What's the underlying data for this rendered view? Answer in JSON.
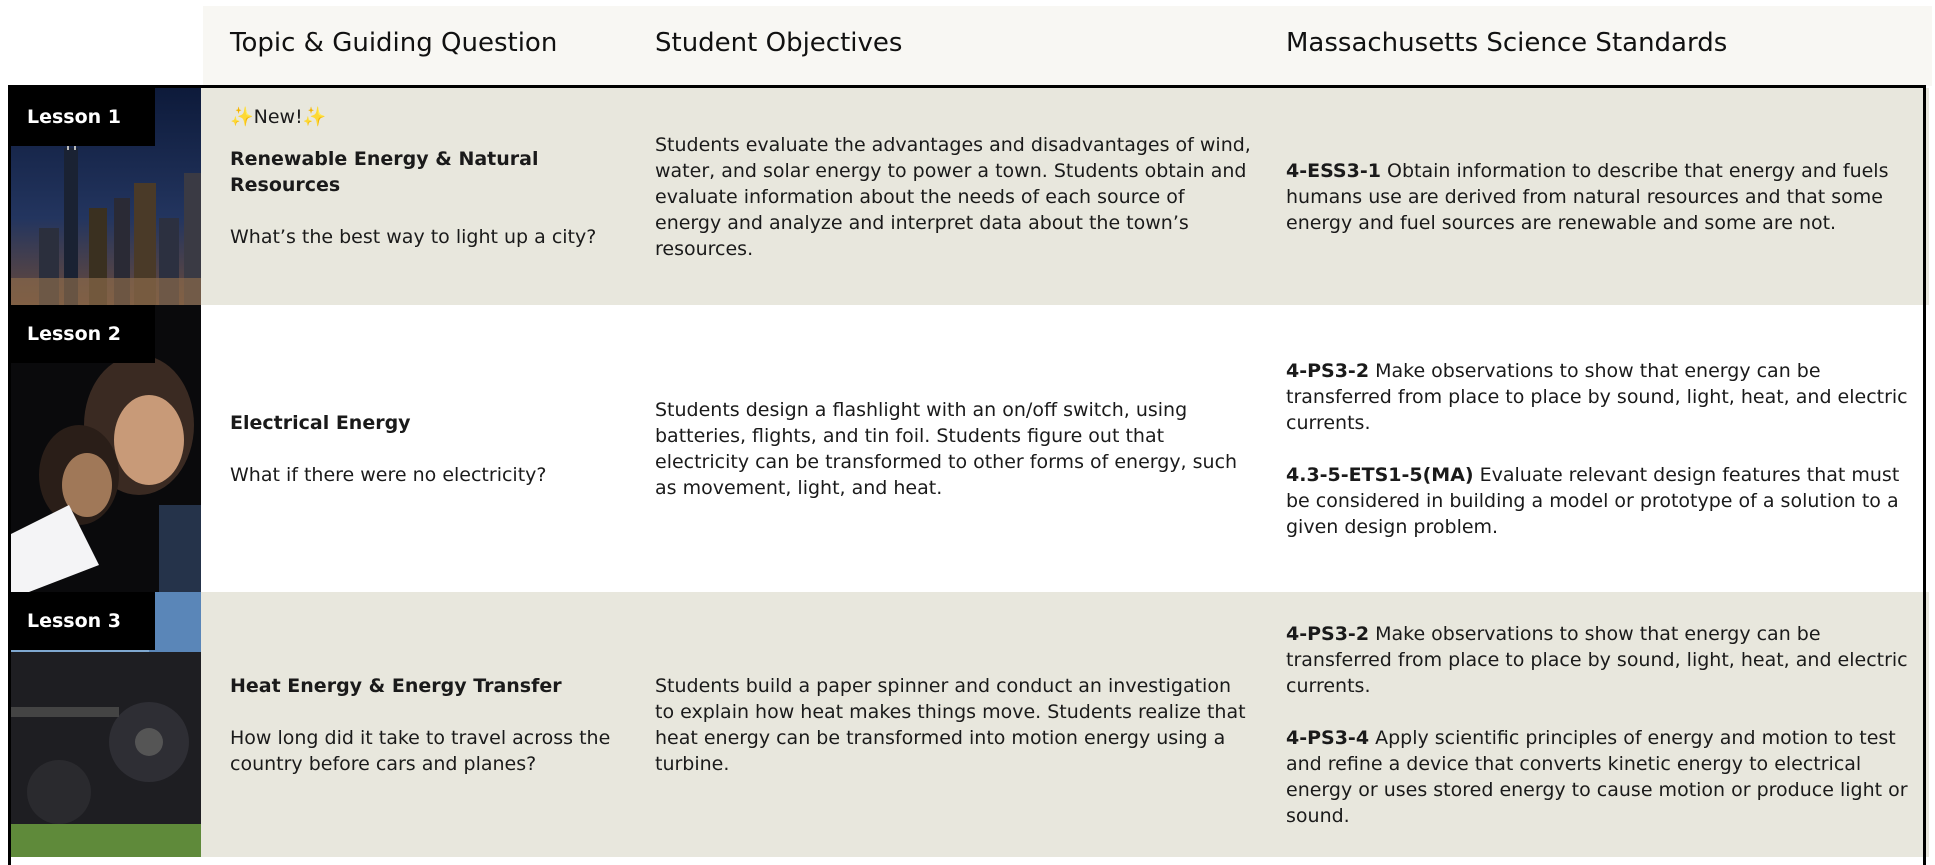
{
  "header": {
    "columns": [
      "Topic & Guiding Question",
      "Student Objectives",
      "Massachusetts Science Standards"
    ]
  },
  "lessons": [
    {
      "label": "Lesson 1",
      "badge": "✨New!✨",
      "topic": "Renewable Energy & Natural Resources",
      "question": "What’s the best way to light up a city?",
      "objectives": "Students evaluate the advantages and disadvantages of wind, water, and solar energy to power a town. Students obtain and evaluate information about the needs of each source of energy and analyze and interpret data about the town’s resources.",
      "standards": [
        {
          "code": "4-ESS3-1",
          "text": "Obtain information to describe that energy and fuels humans use are derived from natural resources and that some energy and fuel sources are renewable and some are not."
        }
      ]
    },
    {
      "label": "Lesson 2",
      "topic": "Electrical Energy",
      "question": "What if there were no electricity?",
      "objectives": "Students design a flashlight with an on/off switch, using batteries, flights, and tin foil. Students figure out that electricity can be transformed to other forms of energy, such as movement, light, and heat.",
      "standards": [
        {
          "code": "4-PS3-2",
          "text": "Make observations to show that energy can be transferred from place to place by sound, light, heat, and electric currents."
        },
        {
          "code": "4.3-5-ETS1-5(MA)",
          "text": "Evaluate relevant design features that must be considered in building a model or prototype of a solution to a given design problem."
        }
      ]
    },
    {
      "label": "Lesson 3",
      "topic": "Heat Energy & Energy Transfer",
      "question": "How long did it take to travel across the country before cars and planes?",
      "objectives": "Students build a paper spinner and conduct an investigation to explain how heat makes things move. Students realize that heat energy can be transformed into motion energy using a turbine.",
      "standards": [
        {
          "code": "4-PS3-2",
          "text": "Make observations to show that energy can be transferred from place to place by sound, light, heat, and electric currents."
        },
        {
          "code": "4-PS3-4",
          "text": "Apply scientific principles of energy and motion to test and refine a device that converts kinetic energy to electrical energy or uses stored energy to cause motion or produce light or sound."
        }
      ]
    }
  ]
}
